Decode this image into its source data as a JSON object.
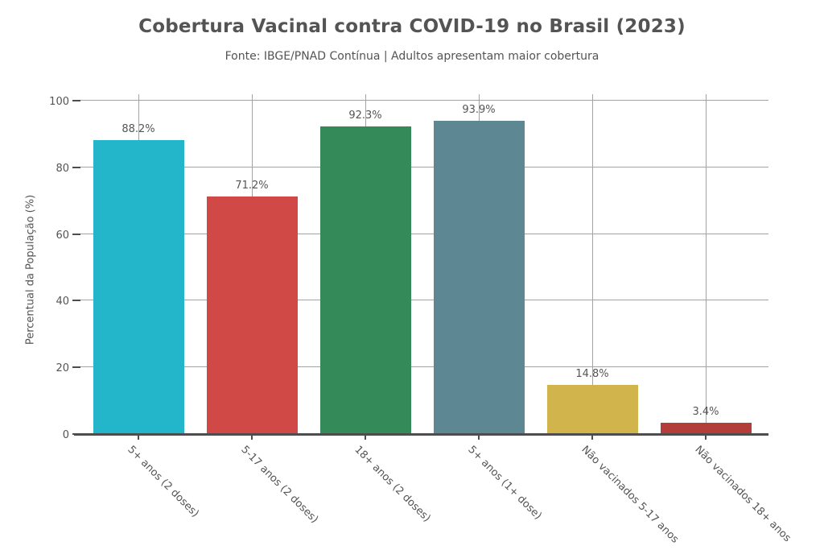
{
  "chart": {
    "title": "Cobertura Vacinal contra COVID-19 no Brasil (2023)",
    "subtitle": "Fonte: IBGE/PNAD Contínua | Adultos apresentam maior cobertura"
  },
  "chart_data": {
    "type": "bar",
    "title": "Cobertura Vacinal contra COVID-19 no Brasil (2023)",
    "subtitle": "Fonte: IBGE/PNAD Contínua | Adultos apresentam maior cobertura",
    "xlabel": "",
    "ylabel": "Percentual da População (%)",
    "ylim": [
      0,
      100
    ],
    "yticks": [
      0,
      20,
      40,
      60,
      80,
      100
    ],
    "grid": true,
    "legend": "none",
    "categories": [
      "5+ anos (2 doses)",
      "5-17 anos (2 doses)",
      "18+ anos (2 doses)",
      "5+ anos (1+ dose)",
      "Não vacinados 5-17 anos",
      "Não vacinados 18+ anos"
    ],
    "values": [
      88.2,
      71.2,
      92.3,
      93.9,
      14.8,
      3.4
    ],
    "value_labels": [
      "88.2%",
      "71.2%",
      "92.3%",
      "93.9%",
      "14.8%",
      "3.4%"
    ],
    "bar_colors": [
      "#23b6ca",
      "#d04946",
      "#348a58",
      "#5e8794",
      "#d1b44c",
      "#b33d39"
    ],
    "text_color": "#545454",
    "grid_color": "#a3a3a3",
    "axis_color": "#4d4d4d",
    "background_color": "#ffffff"
  }
}
